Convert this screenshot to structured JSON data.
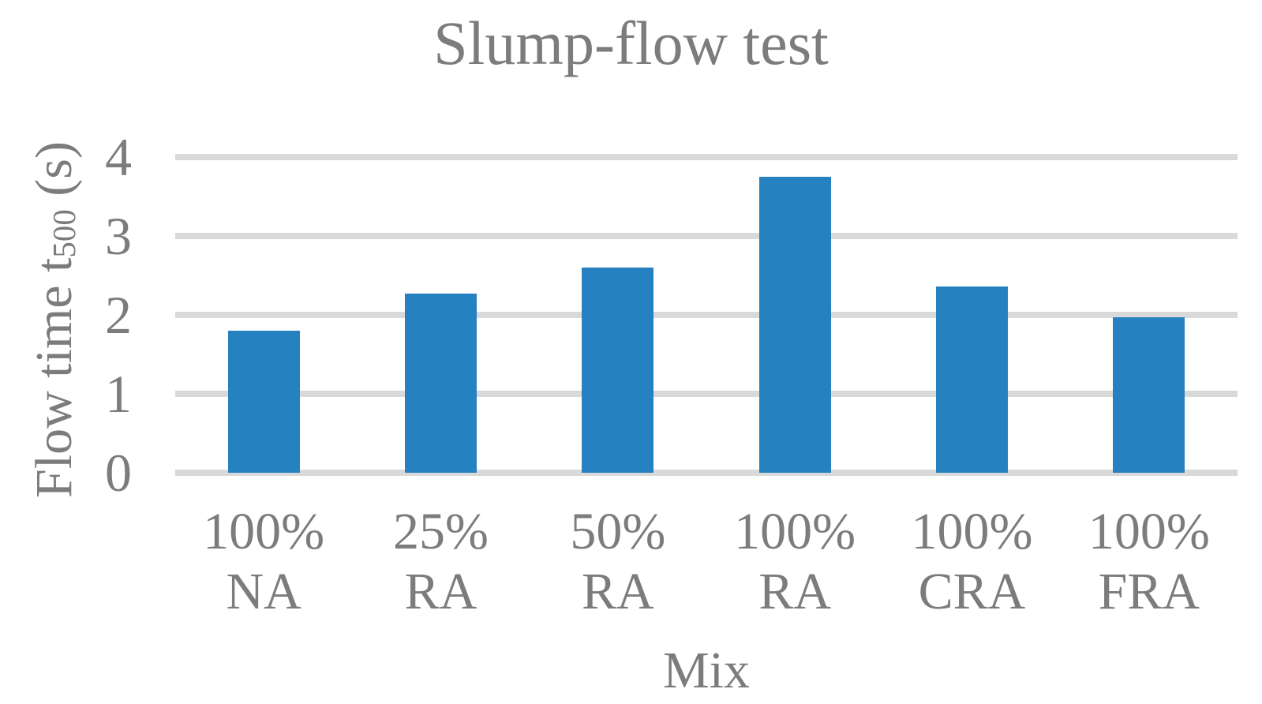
{
  "chart_data": {
    "type": "bar",
    "title": "Slump-flow test",
    "categories": [
      "100% NA",
      "25% RA",
      "50% RA",
      "100% RA",
      "100% CRA",
      "100% FRA"
    ],
    "values": [
      1.8,
      2.27,
      2.6,
      3.75,
      2.36,
      1.97
    ],
    "xlabel": "Mix",
    "ylabel": "Flow time t500 (s)",
    "ylabel_main": "Flow time t",
    "ylabel_sub": "500",
    "ylabel_unit": " (s)",
    "ylim": [
      0,
      4
    ],
    "yticks": [
      4,
      3,
      2,
      1,
      0
    ],
    "grid": "horizontal",
    "legend": "none",
    "bar_color": "#2581bf",
    "gridline_color": "#d9d9d9",
    "text_color": "#7c7c7c"
  }
}
